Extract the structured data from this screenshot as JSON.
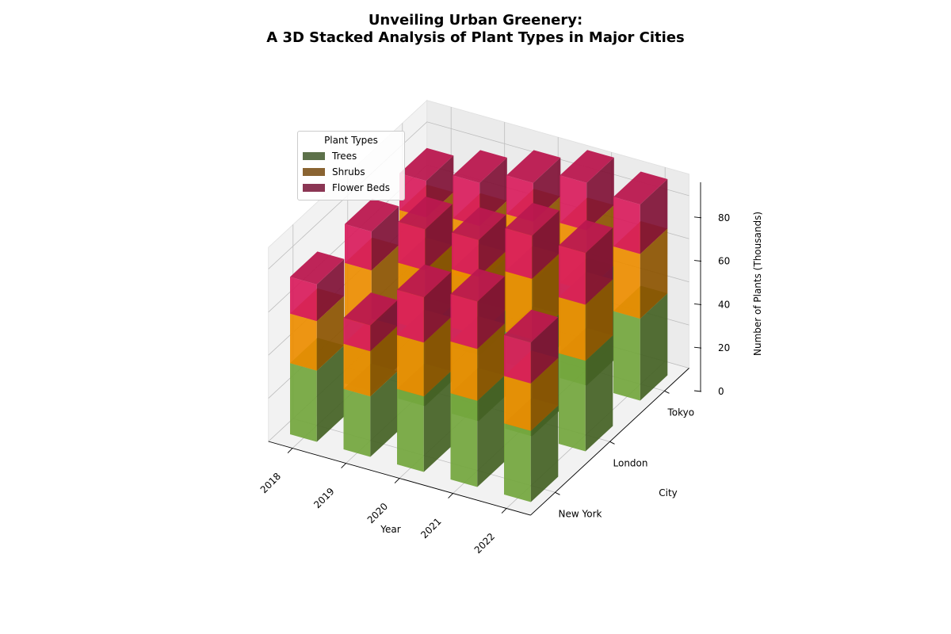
{
  "chart_data": {
    "type": "bar",
    "title_line1": "Unveiling Urban Greenery:",
    "title_line2": "A 3D Stacked Analysis of Plant Types in Major Cities",
    "xlabel": "Year",
    "ylabel": "City",
    "zlabel": "Number of Plants (Thousands)",
    "years": [
      "2018",
      "2019",
      "2020",
      "2021",
      "2022"
    ],
    "cities": [
      "New York",
      "London",
      "Tokyo"
    ],
    "zticks": [
      "0",
      "20",
      "40",
      "60",
      "80"
    ],
    "zlim": [
      0,
      90
    ],
    "legend_title": "Plant Types",
    "colors": {
      "Trees": "#7cb342",
      "Shrubs": "#ff9800",
      "Flower Beds": "#e91e63"
    },
    "legend_colors": {
      "Trees": "#5d714a",
      "Shrubs": "#8a6432",
      "Flower Beds": "#8b3654"
    },
    "series": [
      {
        "name": "Trees",
        "city_values": {
          "New York": [
            33,
            28,
            35,
            40,
            33
          ],
          "London": [
            30,
            35,
            40,
            45,
            42
          ],
          "Tokyo": [
            32,
            34,
            42,
            44,
            38
          ]
        }
      },
      {
        "name": "Shrubs",
        "city_values": {
          "New York": [
            23,
            21,
            25,
            24,
            22
          ],
          "London": [
            26,
            28,
            27,
            28,
            26
          ],
          "Tokyo": [
            25,
            26,
            27,
            28,
            30
          ]
        }
      },
      {
        "name": "Flower Beds",
        "city_values": {
          "New York": [
            17,
            12,
            21,
            22,
            19
          ],
          "London": [
            18,
            19,
            17,
            20,
            24
          ],
          "Tokyo": [
            17,
            20,
            18,
            22,
            23
          ]
        }
      }
    ]
  }
}
